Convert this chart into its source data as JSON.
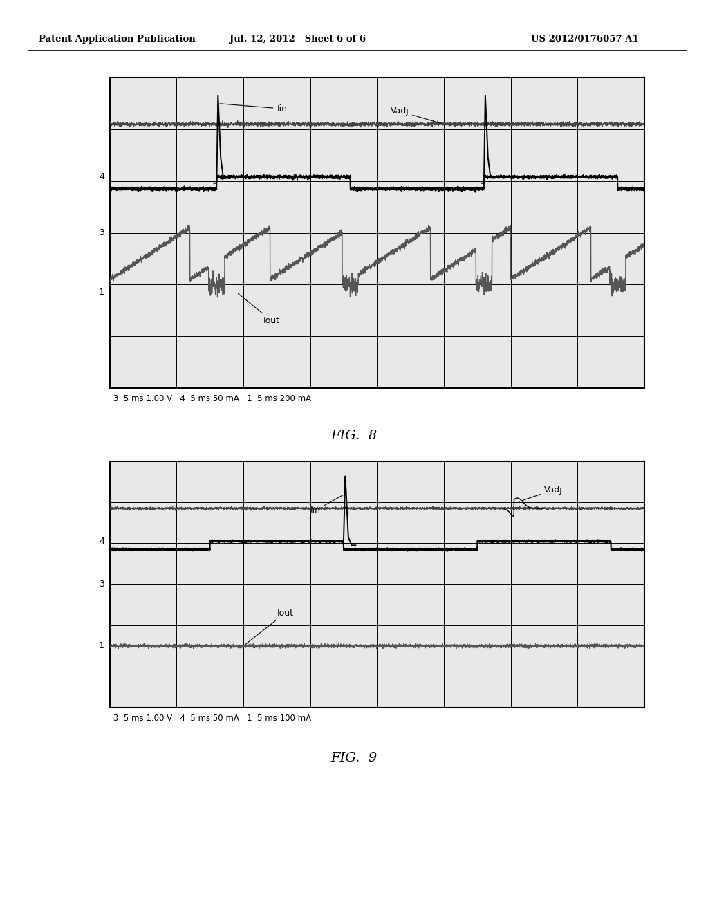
{
  "bg_color": "#ffffff",
  "scope_bg": "#e8e8e8",
  "header_left": "Patent Application Publication",
  "header_center": "Jul. 12, 2012   Sheet 6 of 6",
  "header_right": "US 2012/0176057 A1",
  "fig8_label": "FIG.  8",
  "fig9_label": "FIG.  9",
  "fig8_bottom_label": "3  5 ms 1.00 V   4  5 ms 50 mA   1  5 ms 200 mA",
  "fig9_bottom_label": "3  5 ms 1.00 V   4  5 ms 50 mA   1  5 ms 100 mA",
  "grid_cols": 8,
  "grid_rows": 6
}
